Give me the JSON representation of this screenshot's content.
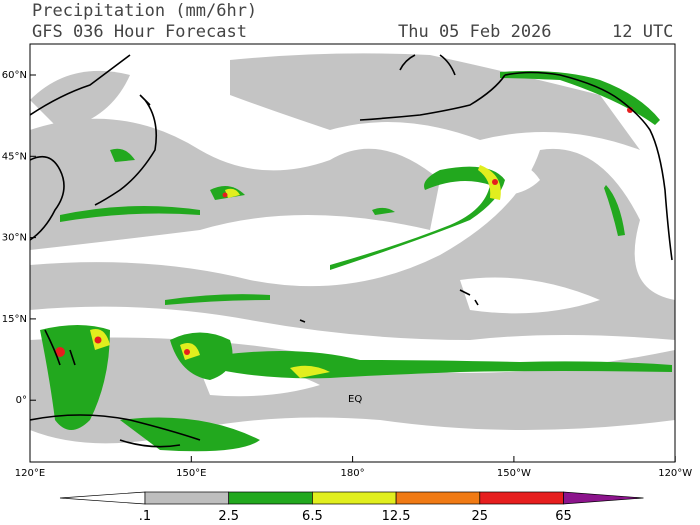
{
  "header": {
    "title": "Precipitation (mm/6hr)",
    "subtitle": "GFS 036 Hour Forecast",
    "date": "Thu 05 Feb 2026",
    "time": "12 UTC"
  },
  "map": {
    "lat_labels": [
      "60°N",
      "45°N",
      "30°N",
      "15°N",
      "0°"
    ],
    "lon_labels": [
      "120°E",
      "150°E",
      "180°",
      "150°W",
      "120°W"
    ],
    "equator_label": "EQ"
  },
  "colorbar": {
    "labels": [
      ".1",
      "2.5",
      "6.5",
      "12.5",
      "25",
      "65"
    ],
    "colors": [
      "#ffffff",
      "#bebebe",
      "#22a81e",
      "#e1ee1e",
      "#f07a14",
      "#e61e1e",
      "#8c148c"
    ]
  }
}
